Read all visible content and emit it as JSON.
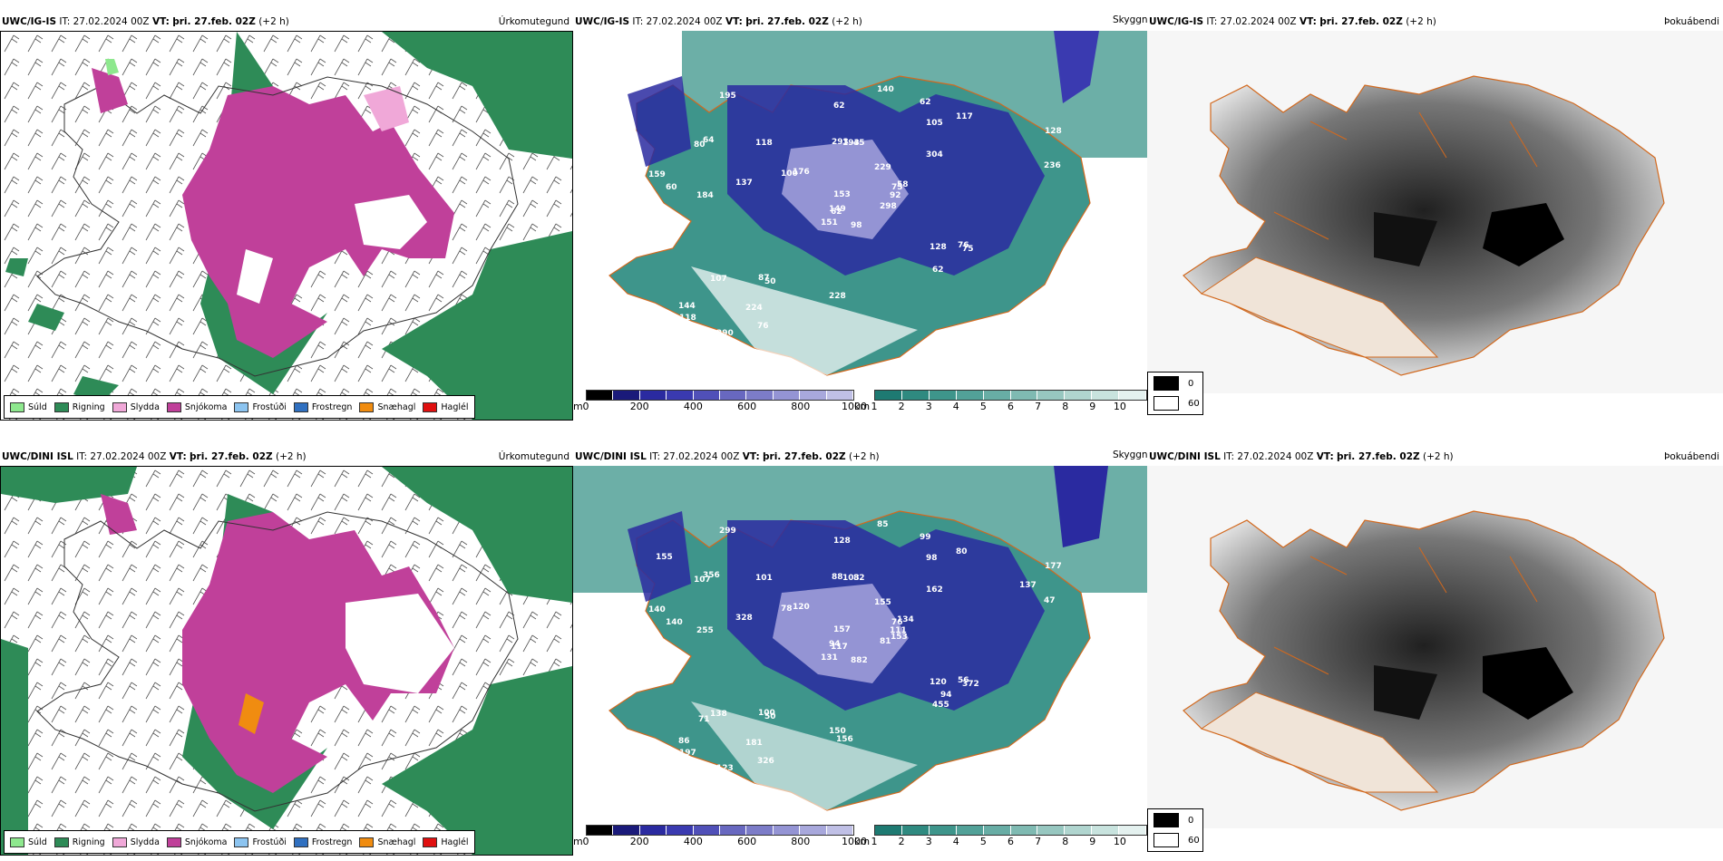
{
  "rows": [
    {
      "model": "UWC/IG-IS",
      "it_label": "IT:",
      "it_value": "27.02.2024 00Z",
      "vt_label": "VT:",
      "vt_value": "þri. 27.feb. 02Z",
      "lead": "(+2 h)"
    },
    {
      "model": "UWC/DINI ISL",
      "it_label": "IT:",
      "it_value": "27.02.2024 00Z",
      "vt_label": "VT:",
      "vt_value": "þri. 27.feb. 02Z",
      "lead": "(+2 h)"
    }
  ],
  "panel_titles": [
    "Úrkomutegund",
    "Skyggni",
    "Þokuábendi"
  ],
  "precip_legend": [
    {
      "label": "Súld",
      "color": "#8ee88e"
    },
    {
      "label": "Rigning",
      "color": "#2e8b57"
    },
    {
      "label": "Slydda",
      "color": "#f0a8d8"
    },
    {
      "label": "Snjókoma",
      "color": "#c0409a"
    },
    {
      "label": "Frostúði",
      "color": "#8cc4f0"
    },
    {
      "label": "Frostregn",
      "color": "#3070c0"
    },
    {
      "label": "Snæhagl",
      "color": "#f08c10"
    },
    {
      "label": "Haglél",
      "color": "#e01010"
    }
  ],
  "ceiling_bar": {
    "unit": "m",
    "ticks": [
      "0",
      "200",
      "400",
      "600",
      "800",
      "1000"
    ],
    "colors": [
      "#000000",
      "#1a1a7a",
      "#2a2aa0",
      "#3a3ab0",
      "#5050b8",
      "#6868c0",
      "#7c7cc8",
      "#9494d4",
      "#a8a8dc",
      "#c0c0e6"
    ]
  },
  "visibility_bar": {
    "unit": "km",
    "ticks": [
      "1",
      "2",
      "3",
      "4",
      "5",
      "6",
      "7",
      "8",
      "9",
      "10"
    ],
    "colors": [
      "#1e7a72",
      "#2f8a80",
      "#3e958b",
      "#52a198",
      "#68ada5",
      "#7fbab2",
      "#97c7c0",
      "#b0d5cf",
      "#c8e3de",
      "#e4f1ef"
    ]
  },
  "fog_legend": [
    {
      "label": "0",
      "color": "#000000"
    },
    {
      "label": "60",
      "color": "#ffffff"
    }
  ],
  "ceiling_labels_top": [
    "98",
    "80",
    "62",
    "144",
    "75",
    "50",
    "62",
    "45",
    "105",
    "298",
    "195",
    "175",
    "184",
    "128",
    "151",
    "304",
    "290",
    "293",
    "229",
    "107",
    "176",
    "118",
    "224",
    "193",
    "58",
    "75",
    "64",
    "62",
    "60",
    "128",
    "236",
    "149",
    "228",
    "153",
    "118",
    "117",
    "87",
    "73",
    "82",
    "76",
    "140",
    "100",
    "137",
    "62",
    "76",
    "159",
    "92",
    "73"
  ],
  "ceiling_labels_bottom": [
    "882",
    "107",
    "117",
    "86",
    "76",
    "50",
    "99",
    "82",
    "98",
    "81",
    "299",
    "134",
    "255",
    "177",
    "131",
    "162",
    "123",
    "88",
    "155",
    "138",
    "120",
    "197",
    "181",
    "103",
    "134",
    "372",
    "356",
    "128",
    "140",
    "120",
    "47",
    "94",
    "150",
    "157",
    "101",
    "80",
    "100",
    "65",
    "58",
    "56",
    "85",
    "78",
    "328",
    "455",
    "326",
    "140",
    "111",
    "300",
    "156",
    "153",
    "71",
    "137",
    "155",
    "94"
  ]
}
